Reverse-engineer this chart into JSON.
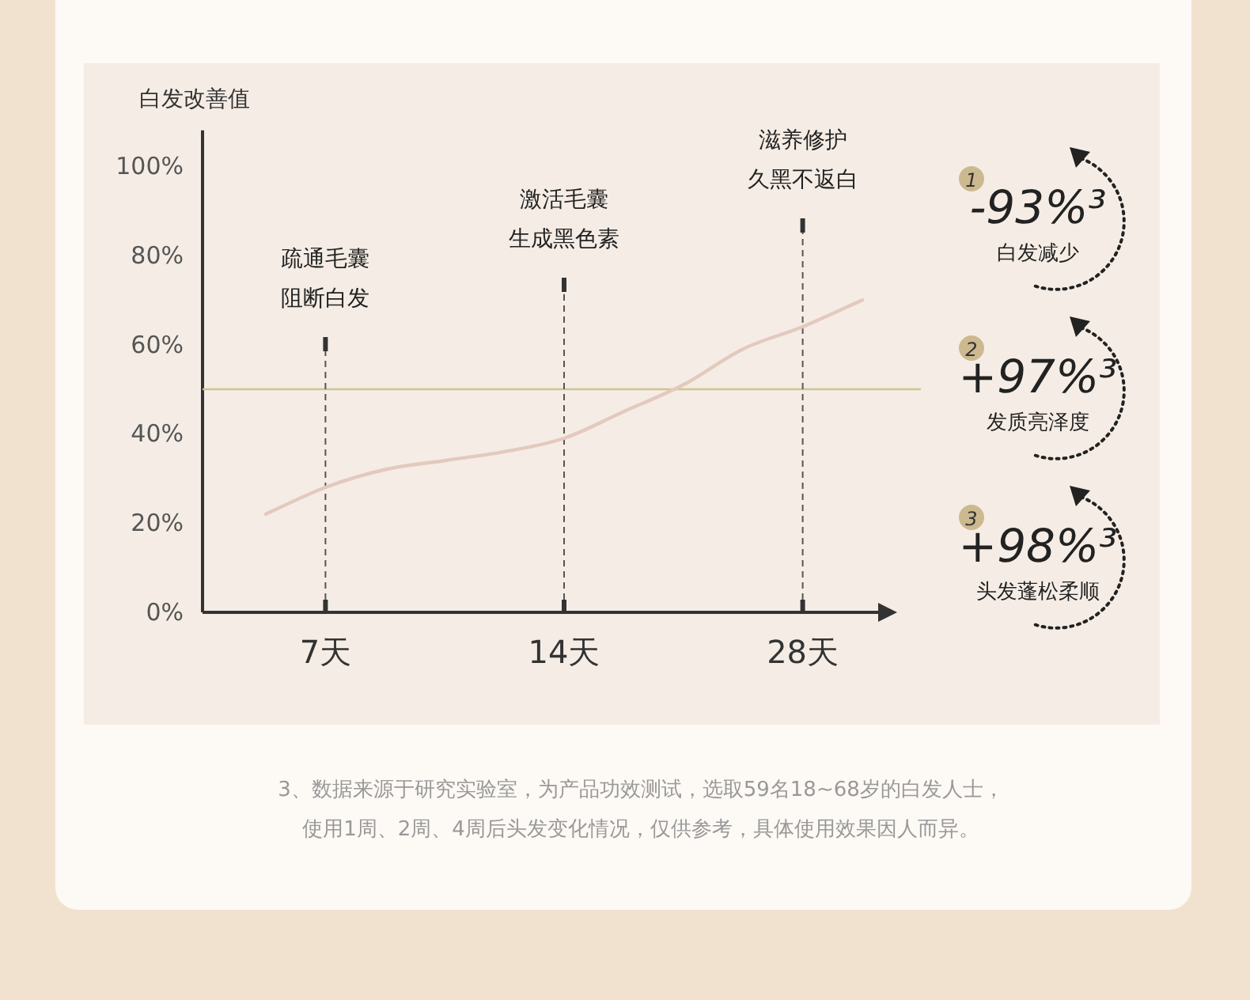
{
  "chart_data": [
    {
      "type": "line",
      "ylabel": "白发改善值",
      "ylim": [
        0,
        108
      ],
      "categories": [
        null,
        "7天",
        null,
        null,
        null,
        "14天",
        null,
        null,
        null,
        "28天",
        null
      ],
      "yticks": [
        {
          "value": 0,
          "label": "0%"
        },
        {
          "value": 20,
          "label": "20%"
        },
        {
          "value": 40,
          "label": "40%"
        },
        {
          "value": 60,
          "label": "60%"
        },
        {
          "value": 80,
          "label": "80%"
        },
        {
          "value": 100,
          "label": "100%"
        }
      ],
      "series": [
        {
          "color": "#e3c9be",
          "values": [
            22,
            28,
            32,
            34,
            36,
            39,
            45,
            51,
            59,
            64,
            70
          ]
        }
      ],
      "ref_lines": [
        {
          "axis": "y",
          "value": 50,
          "color": "#cfc690"
        },
        {
          "axis": "x",
          "value": "7天",
          "label": "疏通毛囊阻断白发",
          "color": "#555555",
          "line_style": "dashed"
        },
        {
          "axis": "x",
          "value": "14天",
          "label": "激活毛囊生成黑色素",
          "color": "#555555",
          "line_style": "dashed"
        },
        {
          "axis": "x",
          "value": "28天",
          "label": "滋养修护久黑不返白",
          "color": "#555555",
          "line_style": "dashed"
        }
      ],
      "annotations": [
        "3、数据来源于研究实验室，为产品功效测试，选取59名18~68岁的白发人士，使用1周、2周、4周后头发变化情况，仅供参考，具体使用效果因人而异。"
      ]
    },
    {
      "type": "other",
      "annotations": [
        "1",
        "-93%³",
        "白发减少",
        "2",
        "+97%³",
        "发质亮泽度",
        "3",
        "+98%³",
        "头发蓬松柔顺"
      ]
    }
  ]
}
